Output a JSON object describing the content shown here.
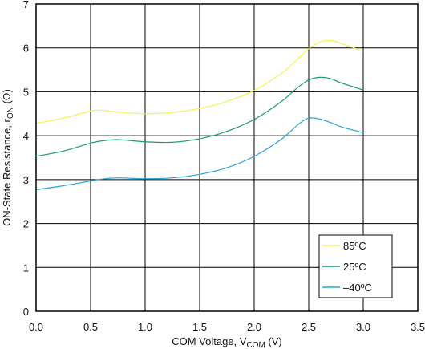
{
  "chart_data": {
    "type": "line",
    "xlabel": {
      "main": "COM Voltage, V",
      "sub": "COM",
      "suffix": " (V)"
    },
    "ylabel": {
      "main": "ON-State Resistance, r",
      "sub": "ON",
      "suffix": " (Ω)"
    },
    "xlim": [
      0,
      3.5
    ],
    "ylim": [
      0,
      7
    ],
    "xticks": [
      "0.0",
      "0.5",
      "1.0",
      "1.5",
      "2.0",
      "2.5",
      "3.0",
      "3.5"
    ],
    "yticks": [
      "0",
      "1",
      "2",
      "3",
      "4",
      "5",
      "6",
      "7"
    ],
    "grid": true,
    "legend_position": "bottom-right",
    "x": [
      0.0,
      0.25,
      0.5,
      0.6,
      0.75,
      1.0,
      1.25,
      1.5,
      1.75,
      2.0,
      2.25,
      2.4,
      2.5,
      2.6,
      2.7,
      2.8,
      3.0
    ],
    "series": [
      {
        "name": "85ºC",
        "color": "#f2f25a",
        "values": [
          4.28,
          4.4,
          4.56,
          4.58,
          4.54,
          4.5,
          4.53,
          4.62,
          4.78,
          5.03,
          5.42,
          5.75,
          5.98,
          6.13,
          6.17,
          6.1,
          5.92
        ]
      },
      {
        "name": "25ºC",
        "color": "#1a9a6c",
        "values": [
          3.53,
          3.65,
          3.83,
          3.88,
          3.91,
          3.86,
          3.85,
          3.93,
          4.1,
          4.37,
          4.78,
          5.1,
          5.27,
          5.33,
          5.3,
          5.2,
          5.04
        ]
      },
      {
        "name": "–40ºC",
        "color": "#29a4d6",
        "values": [
          2.77,
          2.86,
          2.97,
          3.01,
          3.04,
          3.02,
          3.04,
          3.12,
          3.27,
          3.53,
          3.92,
          4.25,
          4.4,
          4.38,
          4.3,
          4.2,
          4.07
        ]
      }
    ]
  }
}
